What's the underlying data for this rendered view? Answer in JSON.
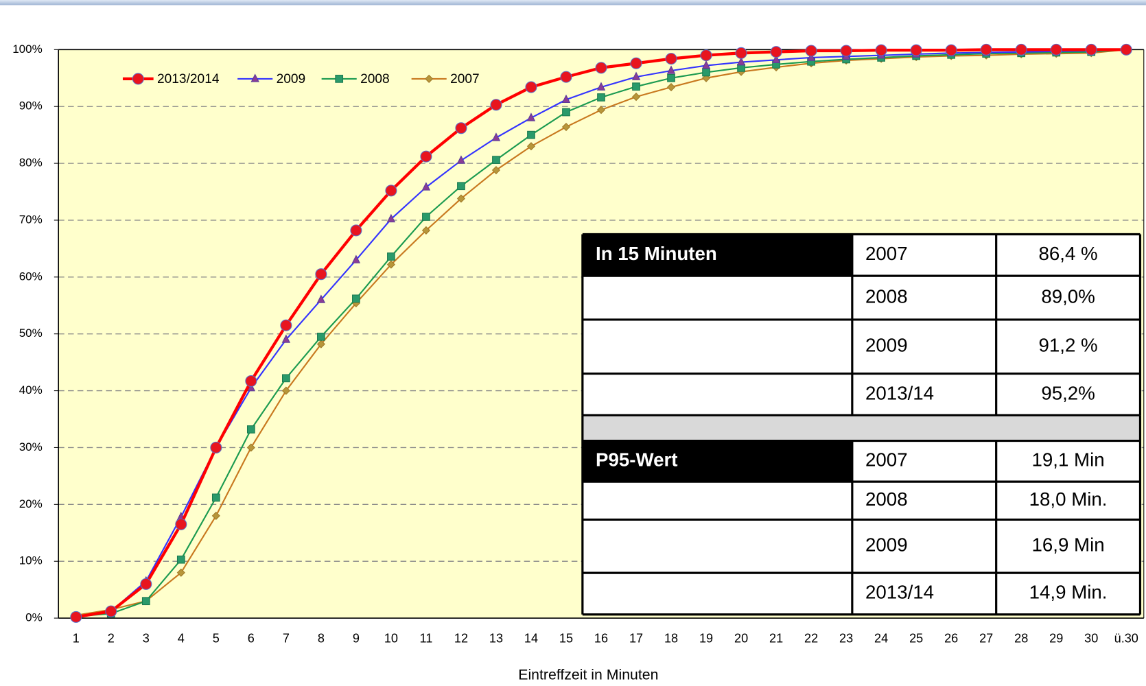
{
  "chart_data": {
    "type": "line",
    "x_label": "Eintreffzeit in Minuten",
    "categories": [
      "1",
      "2",
      "3",
      "4",
      "5",
      "6",
      "7",
      "8",
      "9",
      "10",
      "11",
      "12",
      "13",
      "14",
      "15",
      "16",
      "17",
      "18",
      "19",
      "20",
      "21",
      "22",
      "23",
      "24",
      "25",
      "26",
      "27",
      "28",
      "29",
      "30",
      "ü.30"
    ],
    "ylim": [
      0,
      100
    ],
    "yticks": [
      {
        "value": 0,
        "label": "0%"
      },
      {
        "value": 10,
        "label": "10%"
      },
      {
        "value": 20,
        "label": "20%"
      },
      {
        "value": 30,
        "label": "30%"
      },
      {
        "value": 40,
        "label": "40%"
      },
      {
        "value": 50,
        "label": "50%"
      },
      {
        "value": 60,
        "label": "60%"
      },
      {
        "value": 70,
        "label": "70%"
      },
      {
        "value": 80,
        "label": "80%"
      },
      {
        "value": 90,
        "label": "90%"
      },
      {
        "value": 100,
        "label": "100%"
      }
    ],
    "grid": true,
    "legend": "upper left",
    "series": [
      {
        "name": "2013/2014",
        "color": "#ff0000",
        "marker": "circle",
        "marker_color": "#e8141e",
        "marker_edge": "#5a6cc8",
        "values": [
          0.2,
          1.2,
          6,
          16.5,
          30,
          41.7,
          51.5,
          60.5,
          68.2,
          75.2,
          81.2,
          86.2,
          90.3,
          93.4,
          95.2,
          96.8,
          97.6,
          98.4,
          99,
          99.4,
          99.6,
          99.8,
          99.8,
          99.9,
          99.9,
          99.9,
          100,
          100,
          100,
          100,
          100
        ]
      },
      {
        "name": "2009",
        "color": "#3333ff",
        "marker": "triangle",
        "marker_color": "#8a3c96",
        "marker_edge": "#5a3c9a",
        "values": [
          0.3,
          1.2,
          6.5,
          17.8,
          30,
          40.5,
          49,
          56,
          63,
          70.2,
          75.8,
          80.5,
          84.5,
          88,
          91.2,
          93.4,
          95.2,
          96.3,
          97.2,
          97.8,
          98.2,
          98.6,
          98.8,
          99,
          99.2,
          99.4,
          99.5,
          99.6,
          99.7,
          99.8,
          100
        ]
      },
      {
        "name": "2008",
        "color": "#1a9a50",
        "marker": "square",
        "marker_color": "#2a9a6a",
        "marker_edge": "#1a7a50",
        "values": [
          0.3,
          0.8,
          3,
          10.3,
          21.2,
          33.2,
          42.2,
          49.5,
          56.2,
          63.6,
          70.6,
          76,
          80.6,
          85,
          89,
          91.6,
          93.5,
          95,
          96,
          96.8,
          97.4,
          97.9,
          98.3,
          98.6,
          98.9,
          99.1,
          99.3,
          99.4,
          99.5,
          99.6,
          100
        ]
      },
      {
        "name": "2007",
        "color": "#c8781e",
        "marker": "diamond",
        "marker_color": "#b8963a",
        "marker_edge": "#a07a28",
        "values": [
          0.5,
          1.5,
          3,
          8,
          18,
          30,
          40,
          48.2,
          55.4,
          62.2,
          68.2,
          73.8,
          78.8,
          83,
          86.4,
          89.4,
          91.7,
          93.4,
          95,
          96.1,
          96.9,
          97.6,
          98.1,
          98.4,
          98.7,
          98.9,
          99,
          99.2,
          99.3,
          99.4,
          100
        ]
      }
    ]
  },
  "table": {
    "sections": [
      {
        "title": "In 15 Minuten",
        "rows": [
          [
            "2007",
            "86,4 %"
          ],
          [
            "2008",
            "89,0%"
          ],
          [
            "2009",
            "91,2 %"
          ],
          [
            "2013/14",
            "95,2%"
          ]
        ]
      },
      {
        "title": "P95-Wert",
        "rows": [
          [
            "2007",
            "19,1 Min"
          ],
          [
            "2008",
            "18,0 Min."
          ],
          [
            "2009",
            "16,9 Min"
          ],
          [
            "2013/14",
            "14,9 Min."
          ]
        ]
      }
    ]
  }
}
